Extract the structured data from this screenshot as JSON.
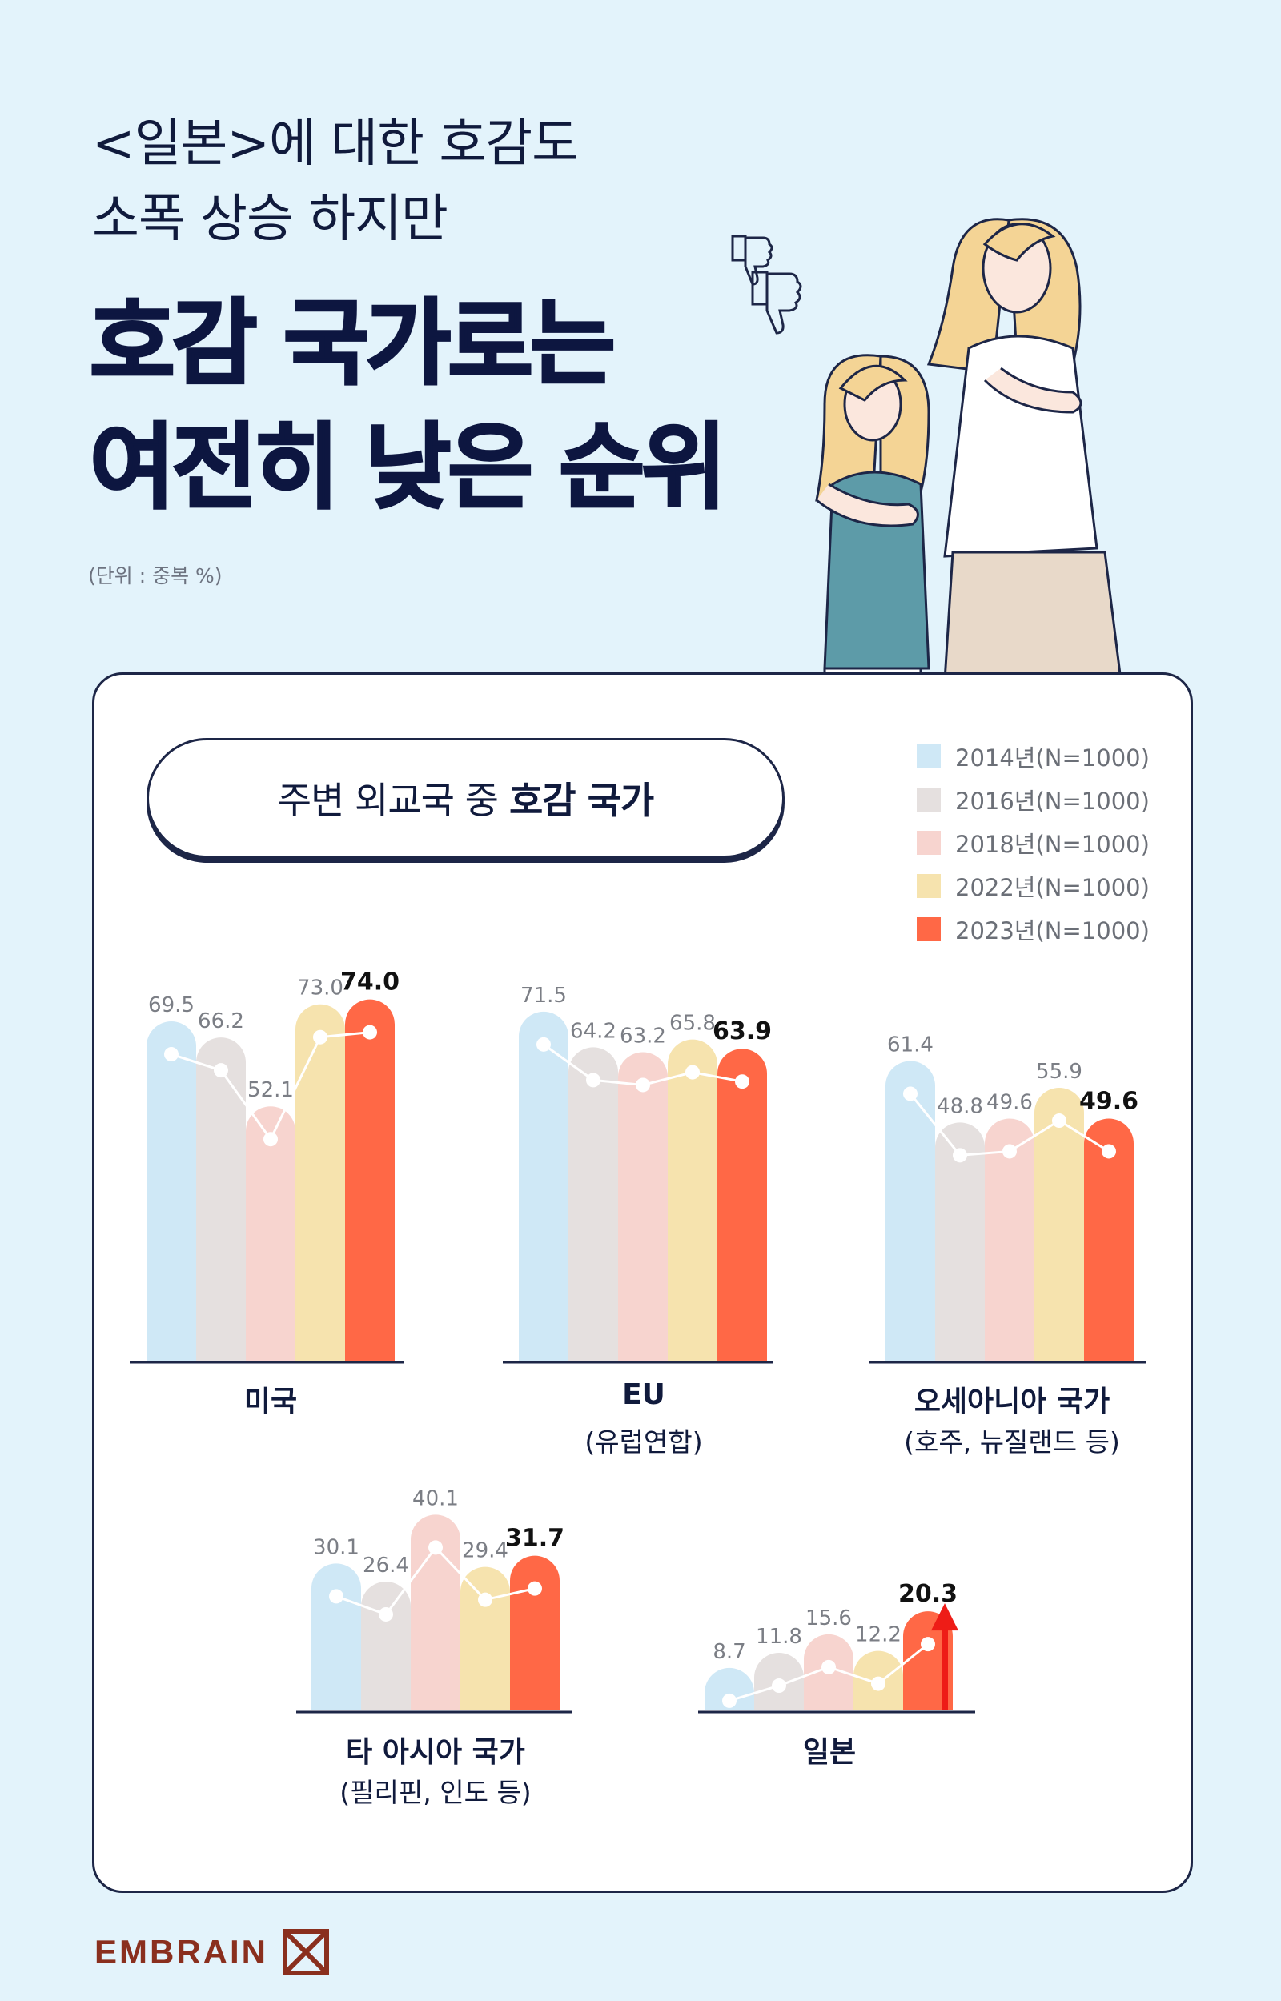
{
  "header": {
    "line1": "<일본>에 대한 호감도",
    "line2": "소폭 상승 하지만",
    "line3": "호감 국가로는",
    "line4": "여전히 낮은 순위",
    "unit": "(단위 : 중복 %)"
  },
  "subtitle": {
    "prefix": "주변 외교국 중",
    "bold": "호감 국가"
  },
  "logo": {
    "text": "EMBRAIN"
  },
  "icons": [
    "thumbs-down-icon",
    "thumbs-down-icon"
  ],
  "colors": {
    "bar2014": "#cfe8f6",
    "bar2016": "#e5e0df",
    "bar2018": "#f7d4cf",
    "bar2022": "#f6e3ae",
    "bar2023": "#ff6846",
    "arrow": "#ee1c17",
    "navy": "#1d2647"
  },
  "chart_data": {
    "type": "bar",
    "series": [
      {
        "name": "2014년(N=1000)"
      },
      {
        "name": "2016년(N=1000)"
      },
      {
        "name": "2018년(N=1000)"
      },
      {
        "name": "2022년(N=1000)"
      },
      {
        "name": "2023년(N=1000)"
      }
    ],
    "groups": [
      {
        "label": "미국",
        "sublabel": "",
        "values": [
          69.5,
          66.2,
          52.1,
          73.0,
          74.0
        ],
        "value_labels": [
          "69.5",
          "66.2",
          "52.1",
          "73.0",
          "74.0"
        ]
      },
      {
        "label": "EU",
        "sublabel": "(유럽연합)",
        "values": [
          71.5,
          64.2,
          63.2,
          65.8,
          63.9
        ],
        "value_labels": [
          "71.5",
          "64.2",
          "63.2",
          "65.8",
          "63.9"
        ]
      },
      {
        "label": "오세아니아 국가",
        "sublabel": "(호주, 뉴질랜드 등)",
        "values": [
          61.4,
          48.8,
          49.6,
          55.9,
          49.6
        ],
        "value_labels": [
          "61.4",
          "48.8",
          "49.6",
          "55.9",
          "49.6"
        ]
      },
      {
        "label": "타 아시아 국가",
        "sublabel": "(필리핀, 인도 등)",
        "values": [
          30.1,
          26.4,
          40.1,
          29.4,
          31.7
        ],
        "value_labels": [
          "30.1",
          "26.4",
          "40.1",
          "29.4",
          "31.7"
        ]
      },
      {
        "label": "일본",
        "sublabel": "",
        "values": [
          8.7,
          11.8,
          15.6,
          12.2,
          20.3
        ],
        "value_labels": [
          "8.7",
          "11.8",
          "15.6",
          "12.2",
          "20.3"
        ],
        "highlight_arrow": true
      }
    ],
    "ylim": [
      0,
      80
    ],
    "legend_position": "top-right"
  }
}
